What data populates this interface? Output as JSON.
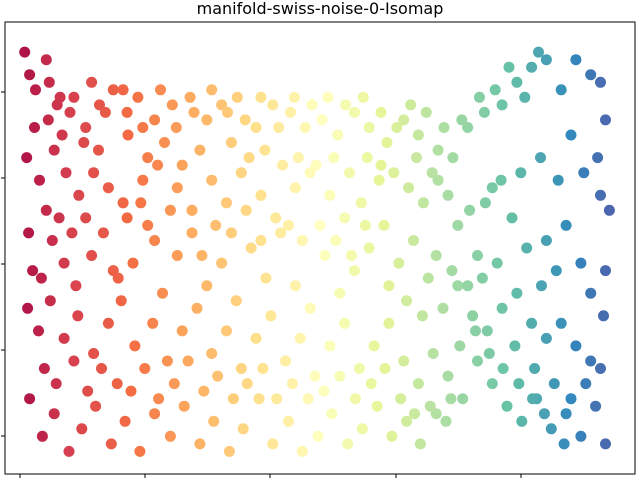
{
  "chart_data": {
    "type": "scatter",
    "title": "manifold-swiss-noise-0-Isomap",
    "xlabel": "",
    "ylabel": "",
    "x_tick_labels": [],
    "y_tick_labels": [],
    "grid": false,
    "legend": "none",
    "colormap": "Spectral",
    "colormap_stops": [
      "#9e0142",
      "#d53e4f",
      "#f46d43",
      "#fdae61",
      "#fee08b",
      "#ffffbf",
      "#e6f598",
      "#abdda4",
      "#66c2a5",
      "#3288bd",
      "#5e4fa2"
    ],
    "marker_size": 6,
    "xlim": [
      -32,
      32
    ],
    "ylim": [
      -3,
      3
    ],
    "color_value": "x",
    "points": [
      [
        -29.5,
        2.3
      ],
      [
        -28.9,
        2.1
      ],
      [
        -27.5,
        2.2
      ],
      [
        -26.7,
        1.9
      ],
      [
        -25.0,
        2.0
      ],
      [
        -23.2,
        2.2
      ],
      [
        -21.8,
        1.8
      ],
      [
        -20.0,
        2.1
      ],
      [
        -18.5,
        2.0
      ],
      [
        -16.8,
        1.7
      ],
      [
        -15.0,
        1.9
      ],
      [
        -13.2,
        2.0
      ],
      [
        -11.5,
        1.7
      ],
      [
        -10.0,
        1.9
      ],
      [
        -8.4,
        2.0
      ],
      [
        -6.5,
        1.6
      ],
      [
        -4.8,
        1.9
      ],
      [
        -3.0,
        1.8
      ],
      [
        -1.5,
        1.6
      ],
      [
        0.2,
        1.7
      ],
      [
        1.8,
        1.5
      ],
      [
        3.5,
        1.8
      ],
      [
        5.0,
        1.6
      ],
      [
        6.8,
        1.4
      ],
      [
        8.5,
        1.7
      ],
      [
        10.0,
        1.5
      ],
      [
        12.0,
        1.3
      ],
      [
        13.5,
        1.2
      ],
      [
        15.0,
        1.6
      ],
      [
        16.7,
        1.8
      ],
      [
        18.5,
        1.9
      ],
      [
        20.0,
        2.2
      ],
      [
        21.5,
        2.4
      ],
      [
        23.0,
        2.5
      ],
      [
        24.5,
        2.1
      ],
      [
        26.0,
        2.5
      ],
      [
        27.5,
        2.3
      ],
      [
        28.5,
        2.2
      ],
      [
        29.0,
        1.7
      ],
      [
        25.5,
        1.5
      ],
      [
        -29.8,
        1.2
      ],
      [
        -28.5,
        0.9
      ],
      [
        -27.0,
        1.3
      ],
      [
        -25.8,
        1.0
      ],
      [
        -24.5,
        0.7
      ],
      [
        -23.0,
        1.0
      ],
      [
        -21.5,
        0.8
      ],
      [
        -20.0,
        0.6
      ],
      [
        -18.0,
        0.9
      ],
      [
        -16.5,
        1.1
      ],
      [
        -14.5,
        0.8
      ],
      [
        -13.0,
        0.5
      ],
      [
        -11.0,
        0.9
      ],
      [
        -9.5,
        0.6
      ],
      [
        -8.0,
        1.0
      ],
      [
        -6.0,
        0.7
      ],
      [
        -4.5,
        0.4
      ],
      [
        -2.5,
        0.8
      ],
      [
        -1.0,
        1.0
      ],
      [
        1.0,
        0.7
      ],
      [
        2.5,
        0.4
      ],
      [
        4.2,
        0.6
      ],
      [
        6.0,
        0.9
      ],
      [
        7.5,
        1.0
      ],
      [
        9.0,
        0.8
      ],
      [
        10.5,
        0.6
      ],
      [
        12.0,
        0.9
      ],
      [
        14.0,
        0.3
      ],
      [
        16.0,
        -0.1
      ],
      [
        17.5,
        0.8
      ],
      [
        19.5,
        0.4
      ],
      [
        21.0,
        0.0
      ],
      [
        23.0,
        0.1
      ],
      [
        25.0,
        0.3
      ],
      [
        26.5,
        -0.2
      ],
      [
        28.5,
        0.7
      ],
      [
        29.0,
        -0.3
      ],
      [
        27.5,
        -0.6
      ],
      [
        24.0,
        -0.3
      ],
      [
        22.5,
        -0.5
      ],
      [
        -29.6,
        0.2
      ],
      [
        -28.3,
        -0.4
      ],
      [
        -27.2,
        0.1
      ],
      [
        -26.0,
        -0.2
      ],
      [
        -24.8,
        -0.5
      ],
      [
        -23.2,
        -0.1
      ],
      [
        -22.0,
        0.2
      ],
      [
        -20.5,
        -0.4
      ],
      [
        -19.0,
        -0.2
      ],
      [
        -17.5,
        0.3
      ],
      [
        -16.0,
        -0.6
      ],
      [
        -14.5,
        -0.1
      ],
      [
        -13.0,
        0.2
      ],
      [
        -11.5,
        -0.5
      ],
      [
        -10.0,
        -0.2
      ],
      [
        -8.5,
        -0.7
      ],
      [
        -7.0,
        0.0
      ],
      [
        -5.5,
        -0.4
      ],
      [
        -4.0,
        0.2
      ],
      [
        -2.5,
        -0.5
      ],
      [
        -1.0,
        -0.8
      ],
      [
        0.5,
        -0.1
      ],
      [
        2.0,
        -0.6
      ],
      [
        3.5,
        -0.3
      ],
      [
        5.0,
        0.0
      ],
      [
        6.5,
        0.3
      ],
      [
        8.0,
        -0.2
      ],
      [
        9.5,
        0.1
      ],
      [
        11.0,
        -0.4
      ],
      [
        12.5,
        -0.8
      ],
      [
        14.0,
        -0.5
      ],
      [
        15.5,
        -0.9
      ],
      [
        17.0,
        -1.1
      ],
      [
        18.5,
        -0.8
      ],
      [
        20.0,
        -0.6
      ],
      [
        21.5,
        -1.0
      ],
      [
        23.0,
        -1.2
      ],
      [
        24.5,
        -1.0
      ],
      [
        26.0,
        -1.3
      ],
      [
        27.5,
        -1.5
      ],
      [
        28.8,
        -0.9
      ],
      [
        -29.7,
        -0.8
      ],
      [
        -28.6,
        -1.1
      ],
      [
        -27.4,
        -0.7
      ],
      [
        -26.0,
        -1.2
      ],
      [
        -24.6,
        -0.9
      ],
      [
        -23.0,
        -1.4
      ],
      [
        -21.5,
        -1.0
      ],
      [
        -20.2,
        -0.7
      ],
      [
        -18.8,
        -1.3
      ],
      [
        -17.0,
        -1.0
      ],
      [
        -15.5,
        -1.5
      ],
      [
        -14.0,
        -1.1
      ],
      [
        -12.5,
        -0.8
      ],
      [
        -11.0,
        -1.4
      ],
      [
        -9.5,
        -1.1
      ],
      [
        -8.0,
        -1.6
      ],
      [
        -6.5,
        -1.2
      ],
      [
        -5.0,
        -0.9
      ],
      [
        -3.5,
        -1.5
      ],
      [
        -2.0,
        -1.2
      ],
      [
        -0.5,
        -1.7
      ],
      [
        1.0,
        -1.3
      ],
      [
        2.5,
        -1.0
      ],
      [
        4.0,
        -1.6
      ],
      [
        5.5,
        -1.3
      ],
      [
        7.0,
        -1.0
      ],
      [
        8.5,
        -1.5
      ],
      [
        10.0,
        -1.8
      ],
      [
        11.5,
        -1.4
      ],
      [
        13.0,
        -1.7
      ],
      [
        14.5,
        -2.0
      ],
      [
        16.0,
        -1.5
      ],
      [
        17.5,
        -1.8
      ],
      [
        19.0,
        -2.1
      ],
      [
        20.5,
        -2.3
      ],
      [
        22.0,
        -2.0
      ],
      [
        23.5,
        -2.4
      ],
      [
        25.0,
        -2.2
      ],
      [
        26.5,
        -2.5
      ],
      [
        28.0,
        -2.1
      ],
      [
        29.0,
        -2.6
      ],
      [
        -29.5,
        -2.0
      ],
      [
        -28.2,
        -2.5
      ],
      [
        -27.0,
        -2.2
      ],
      [
        -25.5,
        -2.7
      ],
      [
        -24.2,
        -2.4
      ],
      [
        -22.8,
        -2.1
      ],
      [
        -21.2,
        -2.6
      ],
      [
        -19.8,
        -2.3
      ],
      [
        -18.3,
        -2.7
      ],
      [
        -16.8,
        -2.2
      ],
      [
        -15.2,
        -2.5
      ],
      [
        -13.8,
        -2.1
      ],
      [
        -12.2,
        -2.6
      ],
      [
        -10.8,
        -2.3
      ],
      [
        -9.2,
        -2.7
      ],
      [
        -7.8,
        -2.4
      ],
      [
        -6.2,
        -2.0
      ],
      [
        -4.8,
        -2.6
      ],
      [
        -3.2,
        -2.3
      ],
      [
        -1.8,
        -2.7
      ],
      [
        -0.2,
        -2.5
      ],
      [
        1.2,
        -2.2
      ],
      [
        2.8,
        -2.6
      ],
      [
        4.3,
        -2.4
      ],
      [
        5.8,
        -2.1
      ],
      [
        7.3,
        -2.5
      ],
      [
        8.8,
        -2.3
      ],
      [
        10.2,
        -2.6
      ],
      [
        11.8,
        -2.2
      ],
      [
        13.3,
        -2.0
      ],
      [
        -30.0,
        2.6
      ],
      [
        -27.8,
        2.5
      ],
      [
        -26.2,
        1.5
      ],
      [
        -24.0,
        1.4
      ],
      [
        -22.5,
        1.3
      ],
      [
        -19.5,
        1.5
      ],
      [
        -17.5,
        1.2
      ],
      [
        -15.8,
        1.4
      ],
      [
        -14.0,
        1.1
      ],
      [
        -12.2,
        1.3
      ],
      [
        -9.0,
        1.4
      ],
      [
        -7.2,
        1.2
      ],
      [
        -5.6,
        1.3
      ],
      [
        -3.8,
        1.1
      ],
      [
        -2.2,
        1.2
      ],
      [
        -0.4,
        1.1
      ],
      [
        1.4,
        1.2
      ],
      [
        3.0,
        1.0
      ],
      [
        4.8,
        1.2
      ],
      [
        6.2,
        1.1
      ],
      [
        9.8,
        1.2
      ],
      [
        11.4,
        1.0
      ],
      [
        13.0,
        0.7
      ],
      [
        15.2,
        0.5
      ],
      [
        16.8,
        0.6
      ],
      [
        18.4,
        0.9
      ],
      [
        20.4,
        1.0
      ],
      [
        22.4,
        1.2
      ],
      [
        24.2,
        0.9
      ],
      [
        26.8,
        1.0
      ],
      [
        28.2,
        1.2
      ],
      [
        29.4,
        0.5
      ],
      [
        -29.2,
        -0.3
      ],
      [
        -27.8,
        0.5
      ],
      [
        -26.5,
        0.4
      ],
      [
        -25.2,
        0.2
      ],
      [
        -23.8,
        0.4
      ],
      [
        -21.0,
        -0.3
      ],
      [
        -19.6,
        0.4
      ],
      [
        -18.2,
        0.6
      ],
      [
        -16.8,
        0.1
      ],
      [
        -15.2,
        0.5
      ],
      [
        -12.0,
        -0.1
      ],
      [
        -10.6,
        0.3
      ],
      [
        -9.0,
        0.2
      ],
      [
        -7.5,
        0.5
      ],
      [
        -6.0,
        0.1
      ],
      [
        -3.2,
        0.3
      ],
      [
        -1.8,
        0.1
      ],
      [
        0.0,
        0.3
      ],
      [
        1.6,
        0.1
      ],
      [
        3.2,
        -0.1
      ],
      [
        4.6,
        0.3
      ],
      [
        7.0,
        -0.5
      ],
      [
        8.8,
        -0.7
      ],
      [
        10.4,
        -0.9
      ],
      [
        11.8,
        -0.1
      ],
      [
        13.4,
        -0.3
      ],
      [
        15.0,
        -0.5
      ],
      [
        16.5,
        -0.4
      ],
      [
        18.0,
        -0.2
      ],
      [
        19.8,
        -1.3
      ],
      [
        21.8,
        -1.6
      ],
      [
        23.8,
        -1.8
      ],
      [
        25.5,
        -2.0
      ],
      [
        27.0,
        -1.8
      ],
      [
        28.5,
        -1.6
      ],
      [
        24.8,
        -2.6
      ],
      [
        22.8,
        -2.2
      ],
      [
        -28.0,
        -1.6
      ],
      [
        -26.8,
        -1.8
      ],
      [
        -25.0,
        -1.5
      ],
      [
        -23.6,
        -1.9
      ],
      [
        -22.2,
        -1.6
      ],
      [
        -20.6,
        -1.8
      ],
      [
        -19.2,
        -1.9
      ],
      [
        -17.8,
        -1.6
      ],
      [
        -16.4,
        -2.0
      ],
      [
        -14.8,
        -1.8
      ],
      [
        -13.4,
        -1.5
      ],
      [
        -11.8,
        -1.9
      ],
      [
        -10.4,
        -1.7
      ],
      [
        -8.8,
        -2.0
      ],
      [
        -7.4,
        -1.8
      ],
      [
        -5.8,
        -1.6
      ],
      [
        -4.4,
        -2.0
      ],
      [
        -2.8,
        -1.8
      ],
      [
        -1.2,
        -2.0
      ],
      [
        0.4,
        -1.9
      ],
      [
        2.0,
        -1.7
      ],
      [
        3.6,
        -2.0
      ],
      [
        5.2,
        -1.8
      ],
      [
        6.6,
        -1.6
      ],
      [
        8.2,
        -2.0
      ],
      [
        9.6,
        -2.2
      ],
      [
        11.2,
        -2.1
      ],
      [
        12.8,
        -2.3
      ],
      [
        14.2,
        -1.3
      ],
      [
        15.8,
        -1.1
      ],
      [
        17.2,
        -1.4
      ],
      [
        18.6,
        -1.6
      ],
      [
        20.2,
        -1.8
      ],
      [
        21.6,
        -2.0
      ],
      [
        -29.0,
        1.6
      ],
      [
        -27.6,
        1.7
      ],
      [
        -26.4,
        2.0
      ],
      [
        -25.4,
        1.8
      ],
      [
        -23.8,
        1.6
      ],
      [
        -22.4,
        1.9
      ],
      [
        -21.0,
        2.1
      ],
      [
        -19.6,
        1.8
      ],
      [
        -18.0,
        1.6
      ],
      [
        -16.2,
        2.1
      ],
      [
        -14.6,
        1.6
      ],
      [
        -12.8,
        1.8
      ],
      [
        -11.0,
        2.1
      ],
      [
        -9.4,
        1.8
      ],
      [
        -7.6,
        1.7
      ],
      [
        -6.0,
        2.0
      ],
      [
        -4.2,
        1.6
      ],
      [
        -2.6,
        2.0
      ],
      [
        -0.8,
        1.9
      ],
      [
        0.8,
        2.0
      ],
      [
        2.6,
        1.9
      ],
      [
        4.4,
        2.0
      ],
      [
        6.2,
        1.8
      ],
      [
        7.8,
        1.6
      ],
      [
        9.2,
        1.9
      ],
      [
        10.8,
        1.8
      ],
      [
        12.6,
        1.6
      ],
      [
        14.4,
        1.7
      ],
      [
        16.2,
        2.0
      ],
      [
        17.8,
        2.1
      ],
      [
        19.2,
        2.4
      ],
      [
        20.8,
        2.0
      ],
      [
        22.2,
        2.6
      ]
    ]
  }
}
